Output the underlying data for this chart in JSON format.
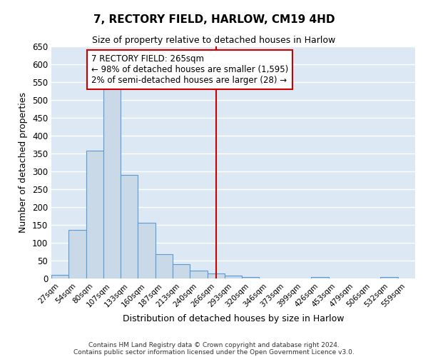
{
  "title": "7, RECTORY FIELD, HARLOW, CM19 4HD",
  "subtitle": "Size of property relative to detached houses in Harlow",
  "xlabel": "Distribution of detached houses by size in Harlow",
  "ylabel": "Number of detached properties",
  "bar_color": "#c9d9e8",
  "bar_edge_color": "#5b9bd5",
  "background_color": "#dce9f5",
  "grid_color": "#ffffff",
  "bin_labels": [
    "27sqm",
    "54sqm",
    "80sqm",
    "107sqm",
    "133sqm",
    "160sqm",
    "187sqm",
    "213sqm",
    "240sqm",
    "266sqm",
    "293sqm",
    "320sqm",
    "346sqm",
    "373sqm",
    "399sqm",
    "426sqm",
    "453sqm",
    "479sqm",
    "506sqm",
    "532sqm",
    "559sqm"
  ],
  "bar_heights": [
    10,
    137,
    358,
    535,
    291,
    157,
    68,
    40,
    22,
    15,
    8,
    5,
    0,
    0,
    0,
    5,
    0,
    0,
    0,
    5,
    0
  ],
  "ylim": [
    0,
    650
  ],
  "yticks": [
    0,
    50,
    100,
    150,
    200,
    250,
    300,
    350,
    400,
    450,
    500,
    550,
    600,
    650
  ],
  "vline_x_index": 9,
  "vline_color": "#cc0000",
  "annotation_title": "7 RECTORY FIELD: 265sqm",
  "annotation_line1": "← 98% of detached houses are smaller (1,595)",
  "annotation_line2": "2% of semi-detached houses are larger (28) →",
  "annotation_box_color": "#cc0000",
  "footer1": "Contains HM Land Registry data © Crown copyright and database right 2024.",
  "footer2": "Contains public sector information licensed under the Open Government Licence v3.0."
}
